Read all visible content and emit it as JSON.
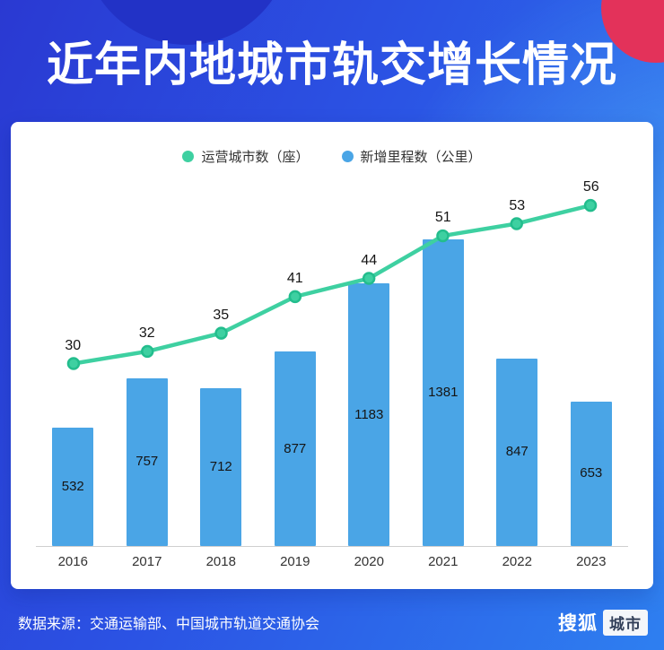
{
  "page": {
    "title": "近年内地城市轨交增长情况",
    "source": "数据来源：交通运输部、中国城市轨道交通协会",
    "logo": {
      "brand": "搜狐",
      "badge": "城市"
    }
  },
  "theme": {
    "background_blue": "#2b53e4",
    "accent_red": "#e3325a",
    "card_white": "#ffffff",
    "text_dark": "#151515"
  },
  "chart_data": {
    "type": "bar",
    "subtype": "bar+line combo",
    "title": "近年内地城市轨交增长情况",
    "categories": [
      "2016",
      "2017",
      "2018",
      "2019",
      "2020",
      "2021",
      "2022",
      "2023"
    ],
    "series": [
      {
        "name": "运营城市数（座）",
        "type": "line",
        "color": "#3ed0a1",
        "values": [
          30,
          32,
          35,
          41,
          44,
          51,
          53,
          56
        ]
      },
      {
        "name": "新增里程数（公里）",
        "type": "bar",
        "color": "#4aa5e6",
        "values": [
          532,
          757,
          712,
          877,
          1183,
          1381,
          847,
          653
        ]
      }
    ],
    "bar_ylim": [
      0,
      1500
    ],
    "line_ylim": [
      0,
      60
    ],
    "legend_position": "top",
    "grid": false,
    "x_axis_line": true
  }
}
